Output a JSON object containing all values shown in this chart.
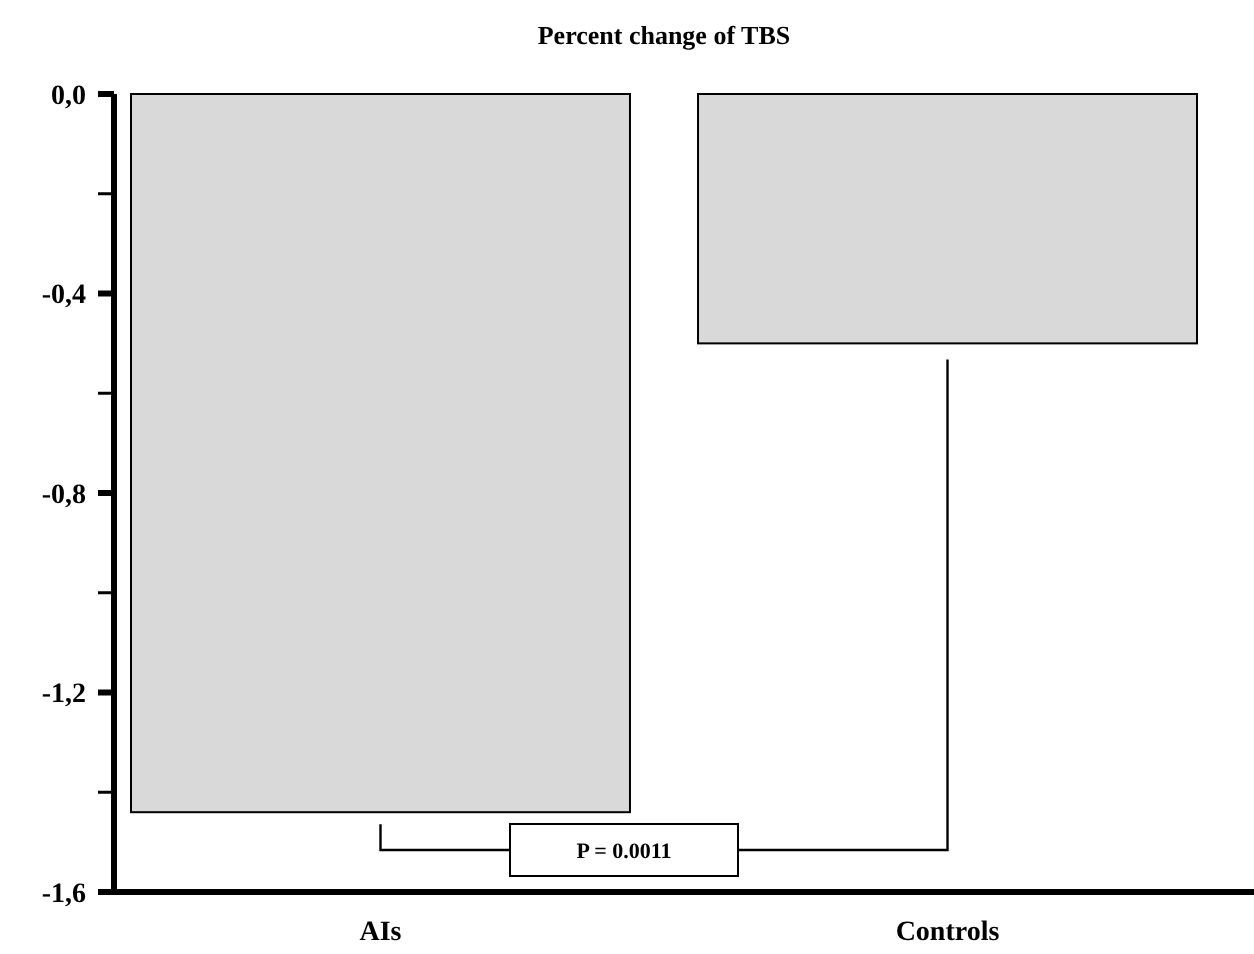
{
  "chart_data": {
    "type": "bar",
    "title": "Percent change of TBS",
    "categories": [
      "AIs",
      "Controls"
    ],
    "values": [
      -1.44,
      -0.5
    ],
    "color": "#d9d9d9",
    "ylim": [
      -1.6,
      0
    ],
    "yticks": [
      {
        "value": 0,
        "label": "0,0"
      },
      {
        "value": -0.2,
        "label": null
      },
      {
        "value": -0.4,
        "label": "-0,4"
      },
      {
        "value": -0.6,
        "label": null
      },
      {
        "value": -0.8,
        "label": "-0,8"
      },
      {
        "value": -1.0,
        "label": null
      },
      {
        "value": -1.2,
        "label": "-1,2"
      },
      {
        "value": -1.4,
        "label": null
      },
      {
        "value": -1.6,
        "label": "-1,6"
      }
    ],
    "annotations": [
      "P = 0.0011"
    ],
    "grid": false
  }
}
